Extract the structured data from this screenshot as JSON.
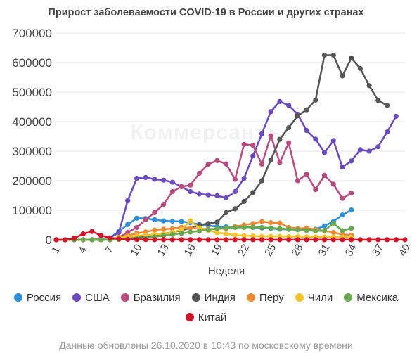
{
  "chart_data": {
    "type": "line",
    "title": "Прирост заболеваемости COVID-19 в России и других странах",
    "xlabel": "Неделя",
    "ylabel": "",
    "ylim": [
      0,
      700000
    ],
    "yticks": [
      "0",
      "100000",
      "200000",
      "300000",
      "400000",
      "500000",
      "600000",
      "700000"
    ],
    "xlim": [
      1,
      40
    ],
    "xticks": [
      "1",
      "4",
      "7",
      "10",
      "13",
      "16",
      "19",
      "22",
      "25",
      "28",
      "31",
      "34",
      "37",
      "40"
    ],
    "grid": true,
    "legend_position": "bottom",
    "series": [
      {
        "name": "Россия",
        "color": "#2f8fd8",
        "start": 1,
        "values": [
          0,
          0,
          0,
          0,
          500,
          2000,
          7000,
          28000,
          52000,
          73000,
          72000,
          68000,
          64000,
          63000,
          62000,
          58000,
          52000,
          48000,
          45000,
          44000,
          43000,
          43000,
          42000,
          40000,
          38000,
          36000,
          35000,
          34000,
          35000,
          36000,
          47000,
          62000,
          84000,
          101000
        ]
      },
      {
        "name": "США",
        "color": "#6a4bbd",
        "start": 1,
        "values": [
          0,
          0,
          0,
          0,
          500,
          2000,
          6000,
          25000,
          133000,
          208000,
          211000,
          205000,
          202000,
          195000,
          180000,
          163000,
          155000,
          152000,
          149000,
          142000,
          163000,
          208000,
          284000,
          359000,
          434000,
          468000,
          455000,
          425000,
          370000,
          341000,
          295000,
          336000,
          246000,
          267000,
          305000,
          300000,
          315000,
          365000,
          418000
        ]
      },
      {
        "name": "Бразилия",
        "color": "#b74b7e",
        "start": 1,
        "values": [
          0,
          0,
          0,
          0,
          0,
          300,
          2000,
          8000,
          25000,
          42000,
          68000,
          92000,
          120000,
          163000,
          180000,
          185000,
          225000,
          256000,
          268000,
          257000,
          205000,
          323000,
          320000,
          256000,
          352000,
          262000,
          328000,
          200000,
          222000,
          170000,
          218000,
          188000,
          140000,
          158000
        ]
      },
      {
        "name": "Индия",
        "color": "#555555",
        "start": 1,
        "values": [
          0,
          0,
          0,
          0,
          0,
          0,
          300,
          1500,
          4000,
          7000,
          10000,
          14000,
          20000,
          26000,
          32000,
          40000,
          50000,
          55000,
          60000,
          92000,
          105000,
          130000,
          160000,
          200000,
          270000,
          340000,
          380000,
          420000,
          440000,
          473000,
          625000,
          625000,
          555000,
          615000,
          580000,
          522000,
          472000,
          455000
        ]
      },
      {
        "name": "Перу",
        "color": "#ee8a36",
        "start": 1,
        "values": [
          0,
          0,
          0,
          0,
          0,
          300,
          3000,
          8000,
          14000,
          22000,
          27000,
          33000,
          36000,
          38000,
          42000,
          40000,
          38000,
          36000,
          37000,
          38000,
          45000,
          50000,
          55000,
          62000,
          58000,
          57000,
          42000,
          38000,
          40000,
          35000,
          30000,
          25000,
          18000,
          16000
        ]
      },
      {
        "name": "Чили",
        "color": "#f4c52b",
        "start": 1,
        "values": [
          0,
          0,
          0,
          0,
          0,
          200,
          2000,
          6000,
          10000,
          13000,
          16000,
          18000,
          20000,
          25000,
          35000,
          64000,
          40000,
          32000,
          24000,
          20000,
          16000,
          14000,
          13000,
          12000,
          12000,
          12000,
          11000,
          11000,
          10000,
          10000,
          10000,
          10000,
          9000,
          9000
        ]
      },
      {
        "name": "Мексика",
        "color": "#6aa84f",
        "start": 1,
        "values": [
          0,
          0,
          0,
          0,
          0,
          0,
          200,
          1000,
          2000,
          4000,
          6000,
          10000,
          14000,
          18000,
          22000,
          26000,
          30000,
          34000,
          38000,
          40000,
          42000,
          42000,
          43000,
          42000,
          40000,
          38000,
          36000,
          34000,
          32000,
          30000,
          31000,
          56000,
          31000,
          39000
        ]
      },
      {
        "name": "Китай",
        "color": "#d0152b",
        "start": 1,
        "values": [
          0,
          0,
          5000,
          20000,
          28000,
          15000,
          6000,
          3000,
          1500,
          800,
          500,
          300,
          200,
          200,
          200,
          200,
          200,
          200,
          200,
          200,
          200,
          200,
          200,
          200,
          200,
          200,
          200,
          200,
          200,
          200,
          200,
          200,
          200,
          200,
          200,
          200,
          200,
          200,
          200,
          200
        ]
      }
    ]
  },
  "watermark": "Коммерсантъ",
  "footnote": "Данные обновлены 26.10.2020 в 10:43 по московскому времени"
}
